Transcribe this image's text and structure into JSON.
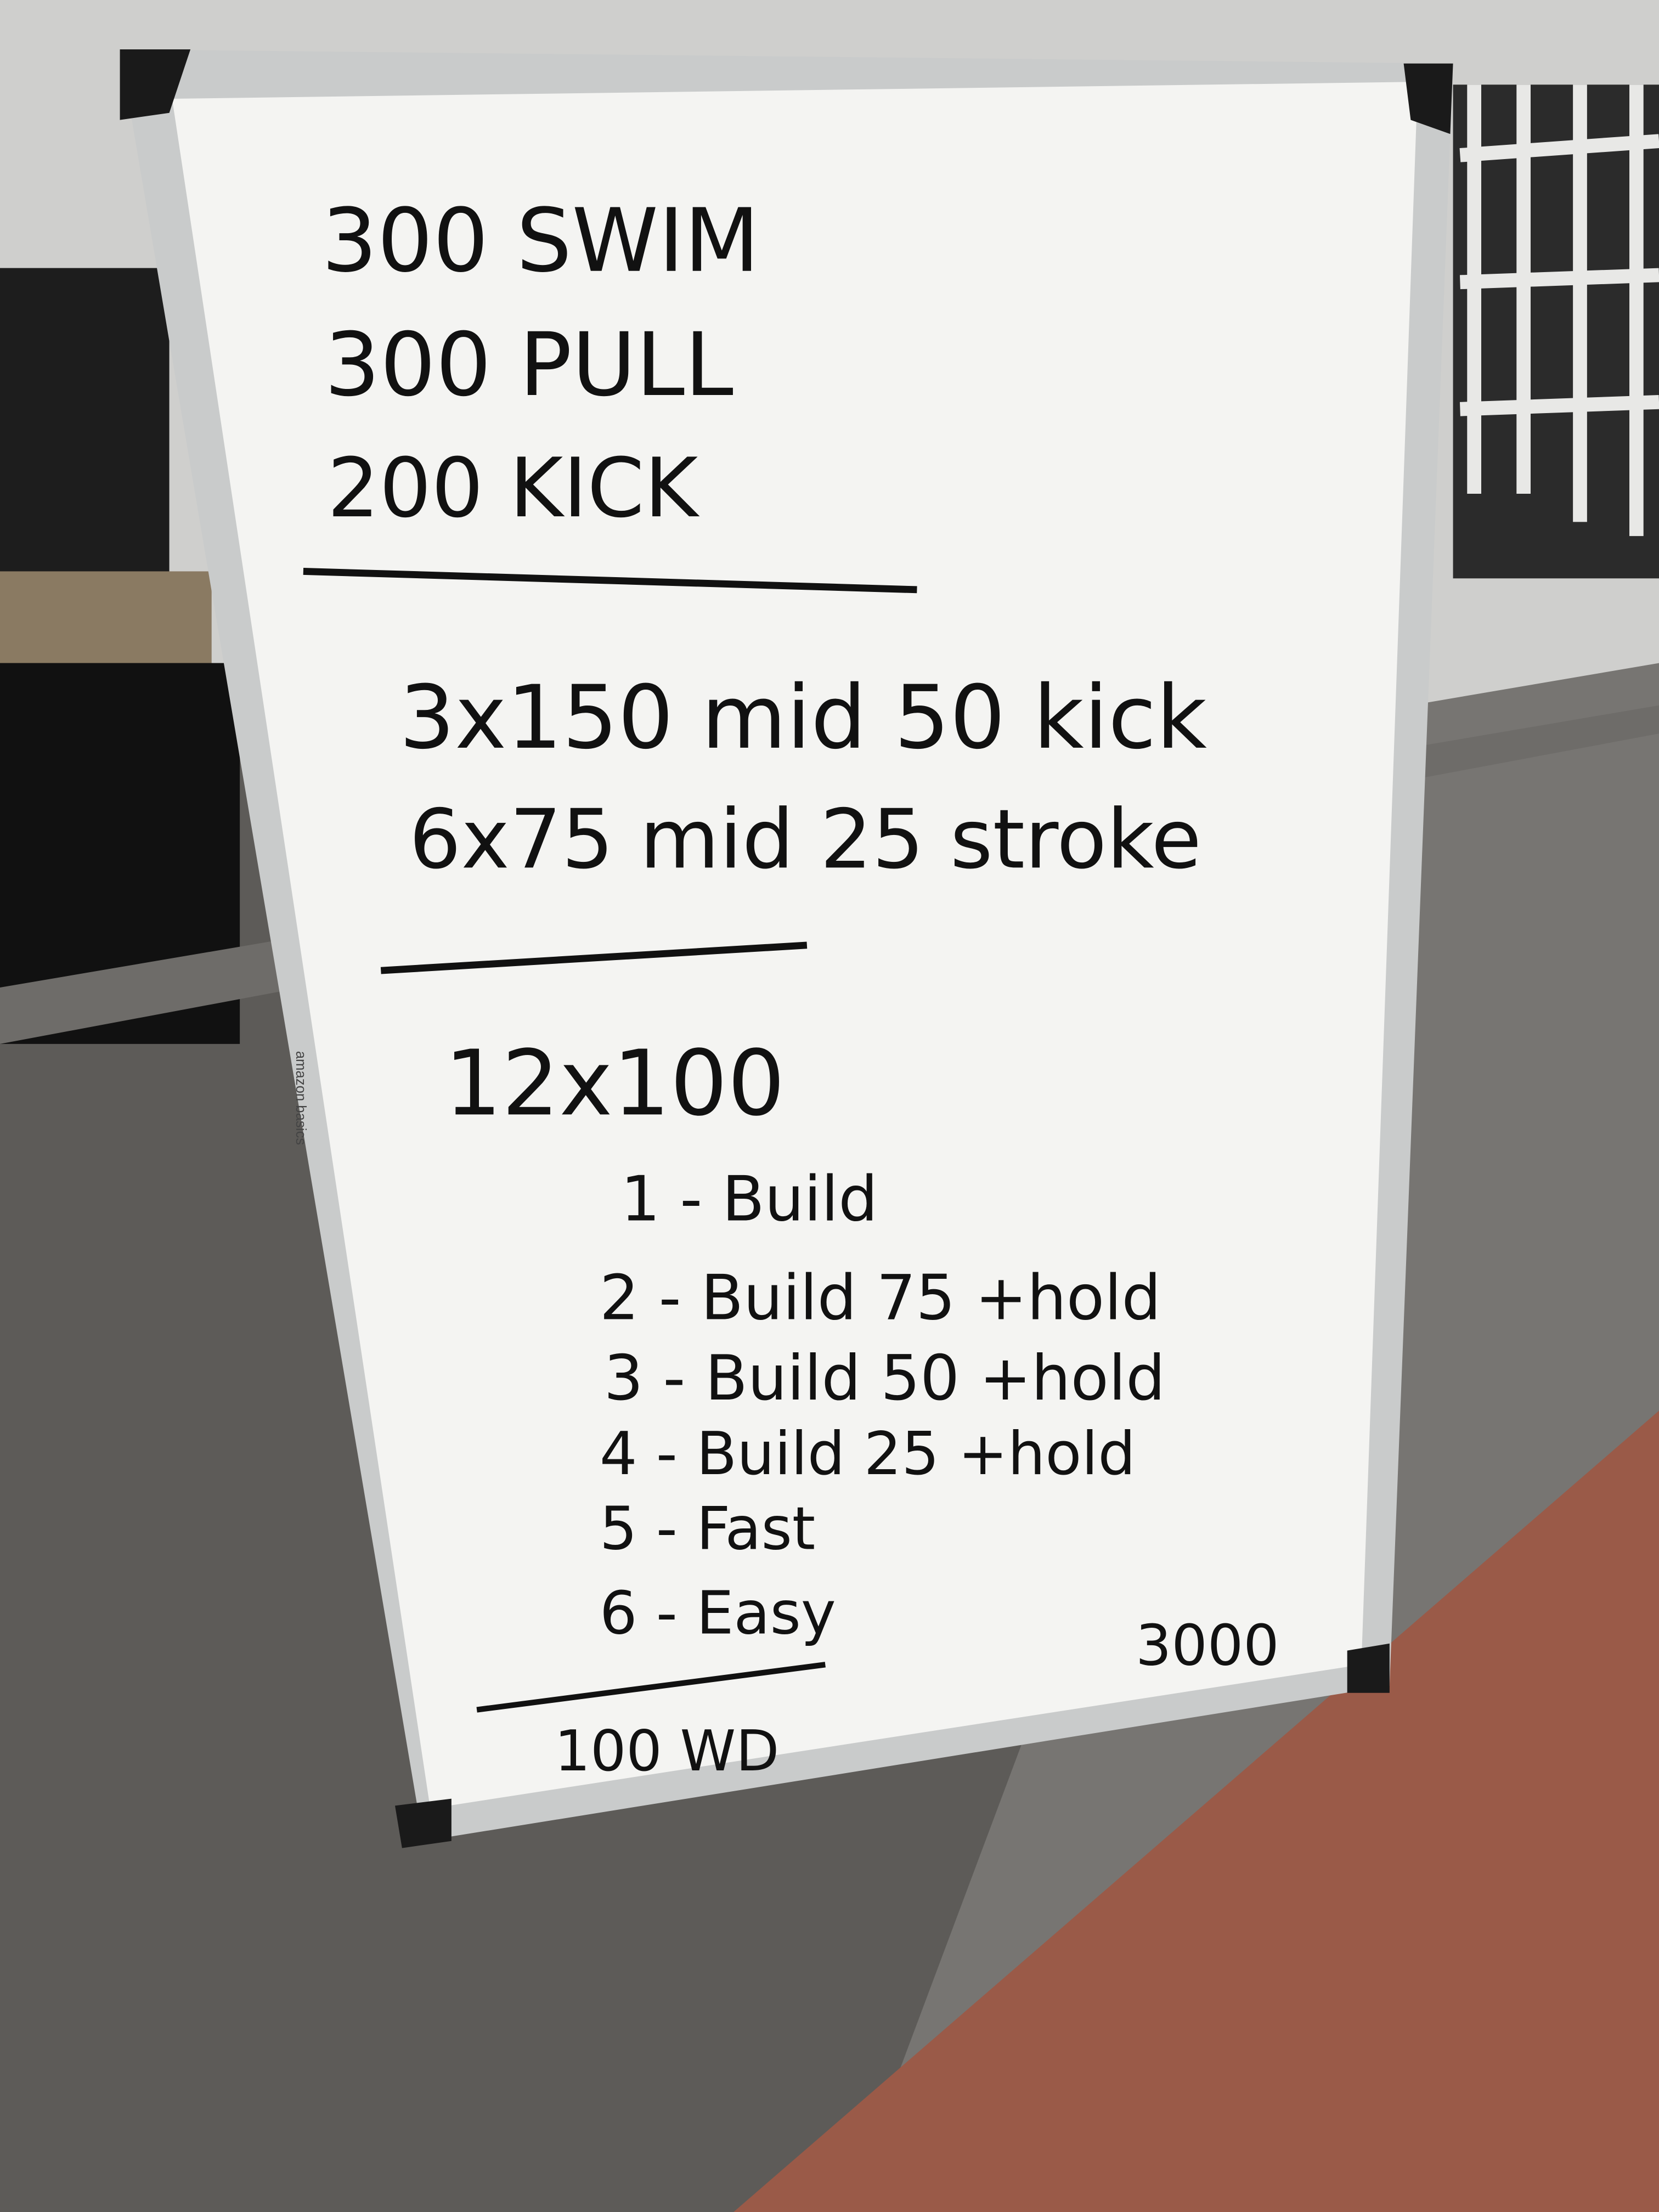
{
  "colors": {
    "board": "#f4f4f2",
    "frame": "#c9cbcb",
    "ink": "#111111",
    "floor": "#6e6c69",
    "brick": "#9a5a48",
    "background_wall": "#d8d8d6"
  },
  "board_brand": "amazon basics",
  "warmup": [
    "300 SWIM",
    "300 PULL",
    "200 KICK"
  ],
  "preset": [
    "3x150 mid 50 kick",
    "6x75 mid 25 stroke"
  ],
  "main_set": {
    "title": "12x100",
    "items": [
      "1 - Build",
      "2 - Build 75 +hold",
      "3 - Build 50 +hold",
      "4 - Build 25 +hold",
      "5 - Fast",
      "6 - Easy"
    ]
  },
  "total": "3000",
  "cooldown": "100 WD"
}
